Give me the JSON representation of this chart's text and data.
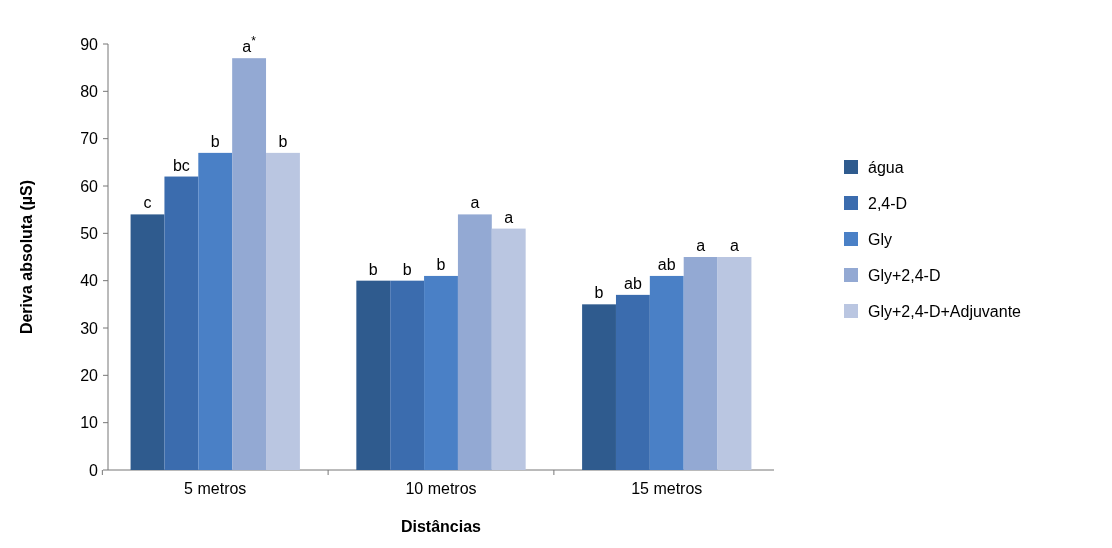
{
  "chart_data": {
    "type": "bar",
    "xlabel": "Distâncias",
    "ylabel": "Deriva absoluta (µS)",
    "categories": [
      "5 metros",
      "10 metros",
      "15 metros"
    ],
    "series": [
      {
        "name": "água",
        "color": "#2f5b8e",
        "values": [
          54,
          40,
          35
        ]
      },
      {
        "name": "2,4-D",
        "color": "#3b6cae",
        "values": [
          62,
          40,
          37
        ]
      },
      {
        "name": "Gly",
        "color": "#4a80c6",
        "values": [
          67,
          41,
          41
        ]
      },
      {
        "name": "Gly+2,4-D",
        "color": "#93a9d3",
        "values": [
          87,
          54,
          45
        ]
      },
      {
        "name": "Gly+2,4-D+Adjuvante",
        "color": "#bac6e1",
        "values": [
          67,
          51,
          45
        ]
      }
    ],
    "value_labels": [
      [
        "c",
        "b",
        "b"
      ],
      [
        "bc",
        "b",
        "ab"
      ],
      [
        "b",
        "b",
        "ab"
      ],
      [
        "a$^{*}$",
        "a",
        "a"
      ],
      [
        "b",
        "a",
        "a"
      ]
    ],
    "ylim": [
      0,
      90
    ],
    "yticks": [
      0,
      10,
      20,
      30,
      40,
      50,
      60,
      70,
      80,
      90
    ],
    "legend": "right",
    "grid": false
  }
}
